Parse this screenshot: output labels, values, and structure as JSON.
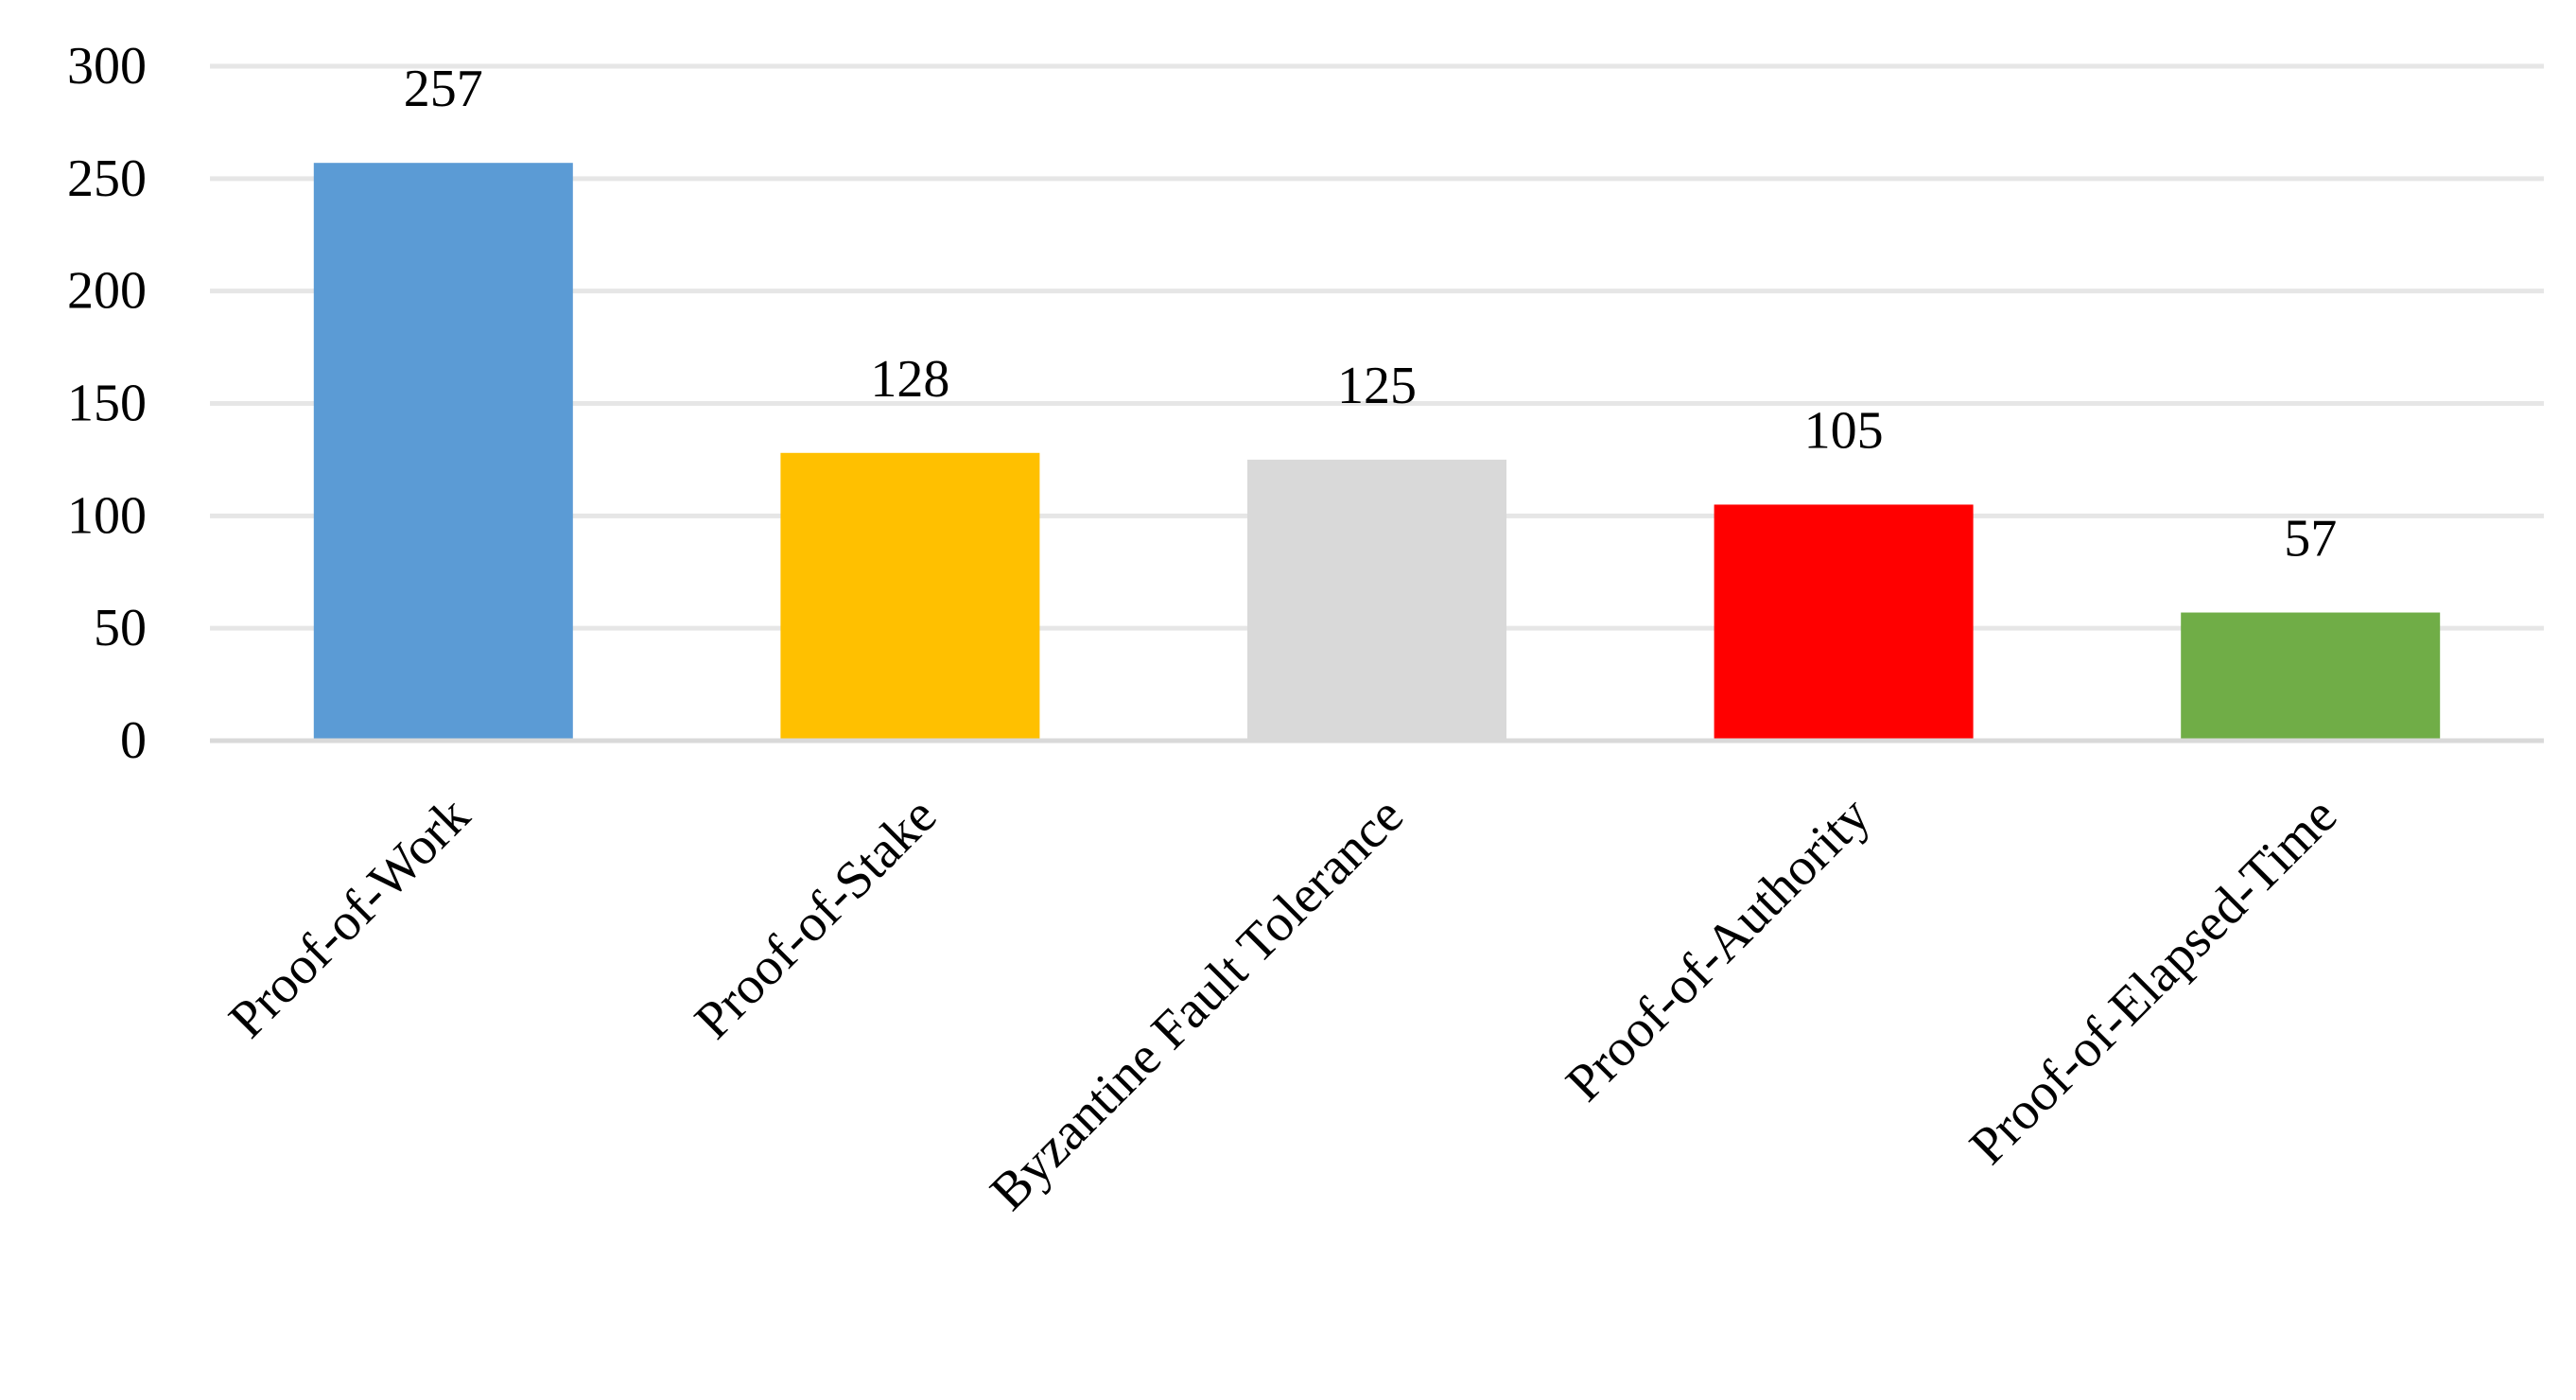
{
  "chart_data": {
    "type": "bar",
    "categories": [
      "Proof-of-Work",
      "Proof-of-Stake",
      "Byzantine Fault Tolerance",
      "Proof-of-Authority",
      "Proof-of-Elapsed-Time"
    ],
    "values": [
      257,
      128,
      125,
      105,
      57
    ],
    "data_labels": [
      "257",
      "128",
      "125",
      "105",
      "57"
    ],
    "colors": [
      "#5b9bd5",
      "#ffc000",
      "#d9d9d9",
      "#ff0000",
      "#70ad47"
    ],
    "ylim": [
      0,
      300
    ],
    "yticks": [
      0,
      50,
      100,
      150,
      200,
      250,
      300
    ],
    "ytick_labels": [
      "0",
      "50",
      "100",
      "150",
      "200",
      "250",
      "300"
    ],
    "grid": true,
    "legend": false,
    "gridline_color": "#e6e6e6"
  }
}
